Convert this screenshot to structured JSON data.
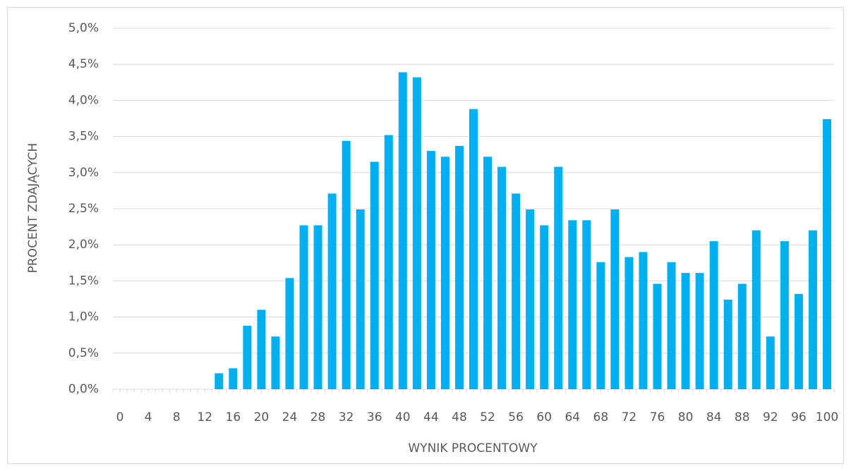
{
  "chart_data": {
    "type": "bar",
    "xlabel": "WYNIK PROCENTOWY",
    "ylabel": "PROCENT ZDAJĄCYCH",
    "categories": [
      "0",
      null,
      "4",
      null,
      "8",
      null,
      "12",
      null,
      "16",
      null,
      "20",
      null,
      "24",
      null,
      "28",
      null,
      "32",
      null,
      "36",
      null,
      "40",
      null,
      "44",
      null,
      "48",
      null,
      "52",
      null,
      "56",
      null,
      "60",
      null,
      "64",
      null,
      "68",
      null,
      "72",
      null,
      "76",
      null,
      "80",
      null,
      "84",
      null,
      "88",
      null,
      "92",
      null,
      "96",
      null,
      "100"
    ],
    "values": [
      0,
      0,
      0,
      0,
      0,
      0,
      0,
      0.22,
      0.29,
      0.88,
      1.1,
      0.73,
      1.54,
      2.27,
      2.27,
      2.71,
      3.44,
      2.49,
      3.15,
      3.52,
      4.39,
      4.32,
      3.3,
      3.22,
      3.37,
      3.88,
      3.22,
      3.08,
      2.71,
      2.49,
      2.27,
      3.08,
      2.34,
      2.34,
      1.76,
      2.49,
      1.83,
      1.9,
      1.46,
      1.76,
      1.61,
      1.61,
      2.05,
      1.24,
      1.46,
      2.2,
      0.73,
      2.05,
      1.32,
      2.2,
      3.74
    ],
    "color": "#00b0f0",
    "ylim": [
      0,
      5
    ],
    "yticks": [
      {
        "value": 0,
        "label": "0,0%"
      },
      {
        "value": 0.5,
        "label": "0,5%"
      },
      {
        "value": 1,
        "label": "1,0%"
      },
      {
        "value": 1.5,
        "label": "1,5%"
      },
      {
        "value": 2,
        "label": "2,0%"
      },
      {
        "value": 2.5,
        "label": "2,5%"
      },
      {
        "value": 3,
        "label": "3,0%"
      },
      {
        "value": 3.5,
        "label": "3,5%"
      },
      {
        "value": 4,
        "label": "4,0%"
      },
      {
        "value": 4.5,
        "label": "4,5%"
      },
      {
        "value": 5,
        "label": "5,0%"
      }
    ],
    "grid": true
  }
}
